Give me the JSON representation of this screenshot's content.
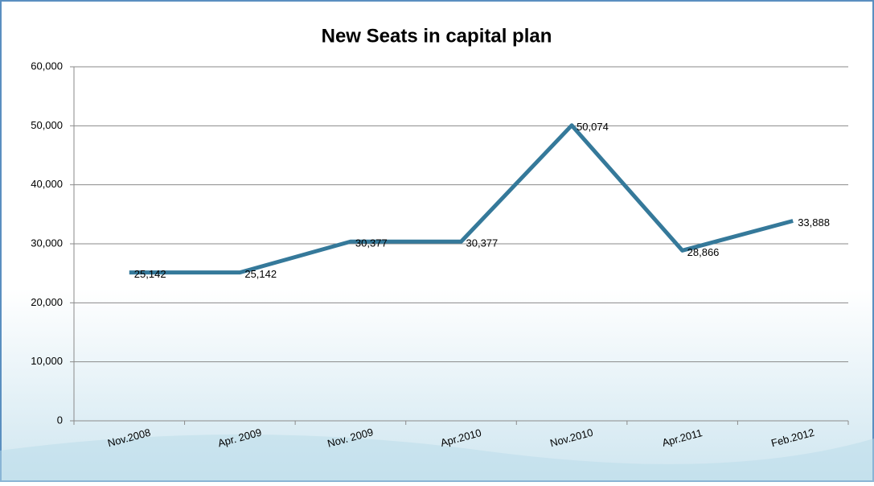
{
  "chart_data": {
    "type": "line",
    "title": "New Seats in capital plan",
    "categories": [
      "Nov.2008",
      "Apr. 2009",
      "Nov. 2009",
      "Apr.2010",
      "Nov.2010",
      "Apr.2011",
      "Feb.2012"
    ],
    "series": [
      {
        "name": "New Seats",
        "color": "#35799a",
        "values": [
          25142,
          25142,
          30377,
          30377,
          50074,
          28866,
          33888
        ],
        "value_labels": [
          "25,142",
          "25,142",
          "30,377",
          "30,377",
          "50,074",
          "28,866",
          "33,888"
        ]
      }
    ],
    "ylim": [
      0,
      60000
    ],
    "yticks": [
      0,
      {
        "value": 10000,
        "label": "10,000"
      },
      {
        "value": 20000,
        "label": "20,000"
      },
      {
        "value": 30000,
        "label": "30,000"
      },
      {
        "value": 40000,
        "label": "40,000"
      },
      {
        "value": 50000,
        "label": "50,000"
      },
      {
        "value": 60000,
        "label": "60,000"
      }
    ],
    "grid": true
  }
}
